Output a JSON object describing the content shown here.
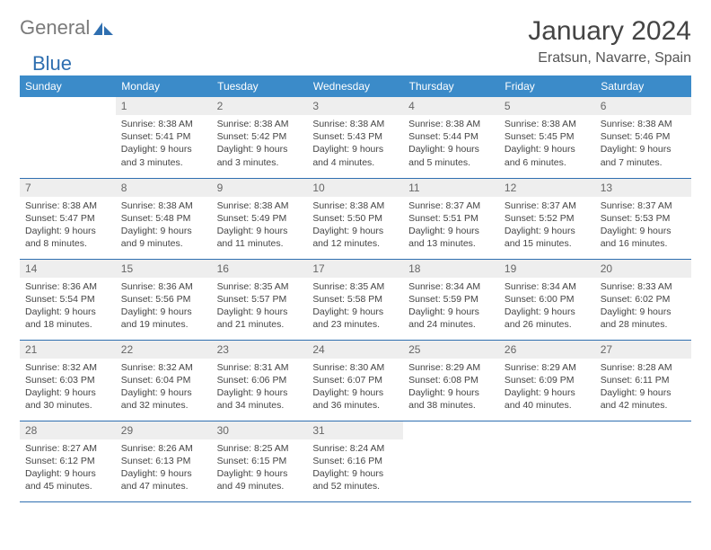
{
  "logo": {
    "part1": "General",
    "part2": "Blue"
  },
  "title": "January 2024",
  "location": "Eratsun, Navarre, Spain",
  "colors": {
    "header_bg": "#3b8bc9",
    "header_text": "#ffffff",
    "daynum_bg": "#eeeeee",
    "border": "#2f6fb0",
    "logo_gray": "#7a7a7a",
    "logo_blue": "#2f6fb0"
  },
  "weekdays": [
    "Sunday",
    "Monday",
    "Tuesday",
    "Wednesday",
    "Thursday",
    "Friday",
    "Saturday"
  ],
  "weeks": [
    [
      null,
      {
        "n": "1",
        "sr": "Sunrise: 8:38 AM",
        "ss": "Sunset: 5:41 PM",
        "dl": "Daylight: 9 hours and 3 minutes."
      },
      {
        "n": "2",
        "sr": "Sunrise: 8:38 AM",
        "ss": "Sunset: 5:42 PM",
        "dl": "Daylight: 9 hours and 3 minutes."
      },
      {
        "n": "3",
        "sr": "Sunrise: 8:38 AM",
        "ss": "Sunset: 5:43 PM",
        "dl": "Daylight: 9 hours and 4 minutes."
      },
      {
        "n": "4",
        "sr": "Sunrise: 8:38 AM",
        "ss": "Sunset: 5:44 PM",
        "dl": "Daylight: 9 hours and 5 minutes."
      },
      {
        "n": "5",
        "sr": "Sunrise: 8:38 AM",
        "ss": "Sunset: 5:45 PM",
        "dl": "Daylight: 9 hours and 6 minutes."
      },
      {
        "n": "6",
        "sr": "Sunrise: 8:38 AM",
        "ss": "Sunset: 5:46 PM",
        "dl": "Daylight: 9 hours and 7 minutes."
      }
    ],
    [
      {
        "n": "7",
        "sr": "Sunrise: 8:38 AM",
        "ss": "Sunset: 5:47 PM",
        "dl": "Daylight: 9 hours and 8 minutes."
      },
      {
        "n": "8",
        "sr": "Sunrise: 8:38 AM",
        "ss": "Sunset: 5:48 PM",
        "dl": "Daylight: 9 hours and 9 minutes."
      },
      {
        "n": "9",
        "sr": "Sunrise: 8:38 AM",
        "ss": "Sunset: 5:49 PM",
        "dl": "Daylight: 9 hours and 11 minutes."
      },
      {
        "n": "10",
        "sr": "Sunrise: 8:38 AM",
        "ss": "Sunset: 5:50 PM",
        "dl": "Daylight: 9 hours and 12 minutes."
      },
      {
        "n": "11",
        "sr": "Sunrise: 8:37 AM",
        "ss": "Sunset: 5:51 PM",
        "dl": "Daylight: 9 hours and 13 minutes."
      },
      {
        "n": "12",
        "sr": "Sunrise: 8:37 AM",
        "ss": "Sunset: 5:52 PM",
        "dl": "Daylight: 9 hours and 15 minutes."
      },
      {
        "n": "13",
        "sr": "Sunrise: 8:37 AM",
        "ss": "Sunset: 5:53 PM",
        "dl": "Daylight: 9 hours and 16 minutes."
      }
    ],
    [
      {
        "n": "14",
        "sr": "Sunrise: 8:36 AM",
        "ss": "Sunset: 5:54 PM",
        "dl": "Daylight: 9 hours and 18 minutes."
      },
      {
        "n": "15",
        "sr": "Sunrise: 8:36 AM",
        "ss": "Sunset: 5:56 PM",
        "dl": "Daylight: 9 hours and 19 minutes."
      },
      {
        "n": "16",
        "sr": "Sunrise: 8:35 AM",
        "ss": "Sunset: 5:57 PM",
        "dl": "Daylight: 9 hours and 21 minutes."
      },
      {
        "n": "17",
        "sr": "Sunrise: 8:35 AM",
        "ss": "Sunset: 5:58 PM",
        "dl": "Daylight: 9 hours and 23 minutes."
      },
      {
        "n": "18",
        "sr": "Sunrise: 8:34 AM",
        "ss": "Sunset: 5:59 PM",
        "dl": "Daylight: 9 hours and 24 minutes."
      },
      {
        "n": "19",
        "sr": "Sunrise: 8:34 AM",
        "ss": "Sunset: 6:00 PM",
        "dl": "Daylight: 9 hours and 26 minutes."
      },
      {
        "n": "20",
        "sr": "Sunrise: 8:33 AM",
        "ss": "Sunset: 6:02 PM",
        "dl": "Daylight: 9 hours and 28 minutes."
      }
    ],
    [
      {
        "n": "21",
        "sr": "Sunrise: 8:32 AM",
        "ss": "Sunset: 6:03 PM",
        "dl": "Daylight: 9 hours and 30 minutes."
      },
      {
        "n": "22",
        "sr": "Sunrise: 8:32 AM",
        "ss": "Sunset: 6:04 PM",
        "dl": "Daylight: 9 hours and 32 minutes."
      },
      {
        "n": "23",
        "sr": "Sunrise: 8:31 AM",
        "ss": "Sunset: 6:06 PM",
        "dl": "Daylight: 9 hours and 34 minutes."
      },
      {
        "n": "24",
        "sr": "Sunrise: 8:30 AM",
        "ss": "Sunset: 6:07 PM",
        "dl": "Daylight: 9 hours and 36 minutes."
      },
      {
        "n": "25",
        "sr": "Sunrise: 8:29 AM",
        "ss": "Sunset: 6:08 PM",
        "dl": "Daylight: 9 hours and 38 minutes."
      },
      {
        "n": "26",
        "sr": "Sunrise: 8:29 AM",
        "ss": "Sunset: 6:09 PM",
        "dl": "Daylight: 9 hours and 40 minutes."
      },
      {
        "n": "27",
        "sr": "Sunrise: 8:28 AM",
        "ss": "Sunset: 6:11 PM",
        "dl": "Daylight: 9 hours and 42 minutes."
      }
    ],
    [
      {
        "n": "28",
        "sr": "Sunrise: 8:27 AM",
        "ss": "Sunset: 6:12 PM",
        "dl": "Daylight: 9 hours and 45 minutes."
      },
      {
        "n": "29",
        "sr": "Sunrise: 8:26 AM",
        "ss": "Sunset: 6:13 PM",
        "dl": "Daylight: 9 hours and 47 minutes."
      },
      {
        "n": "30",
        "sr": "Sunrise: 8:25 AM",
        "ss": "Sunset: 6:15 PM",
        "dl": "Daylight: 9 hours and 49 minutes."
      },
      {
        "n": "31",
        "sr": "Sunrise: 8:24 AM",
        "ss": "Sunset: 6:16 PM",
        "dl": "Daylight: 9 hours and 52 minutes."
      },
      null,
      null,
      null
    ]
  ]
}
